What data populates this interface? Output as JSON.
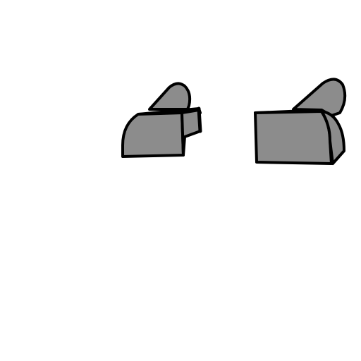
{
  "scene": {
    "background_color": "#ffffff",
    "fill_color": "#8c8c8c",
    "outline_color": "#000000",
    "objects": [
      {
        "name": "left-shape",
        "description_icon": "box-with-wedge-icon"
      },
      {
        "name": "right-shape",
        "description_icon": "box-with-wedge-icon"
      }
    ]
  }
}
